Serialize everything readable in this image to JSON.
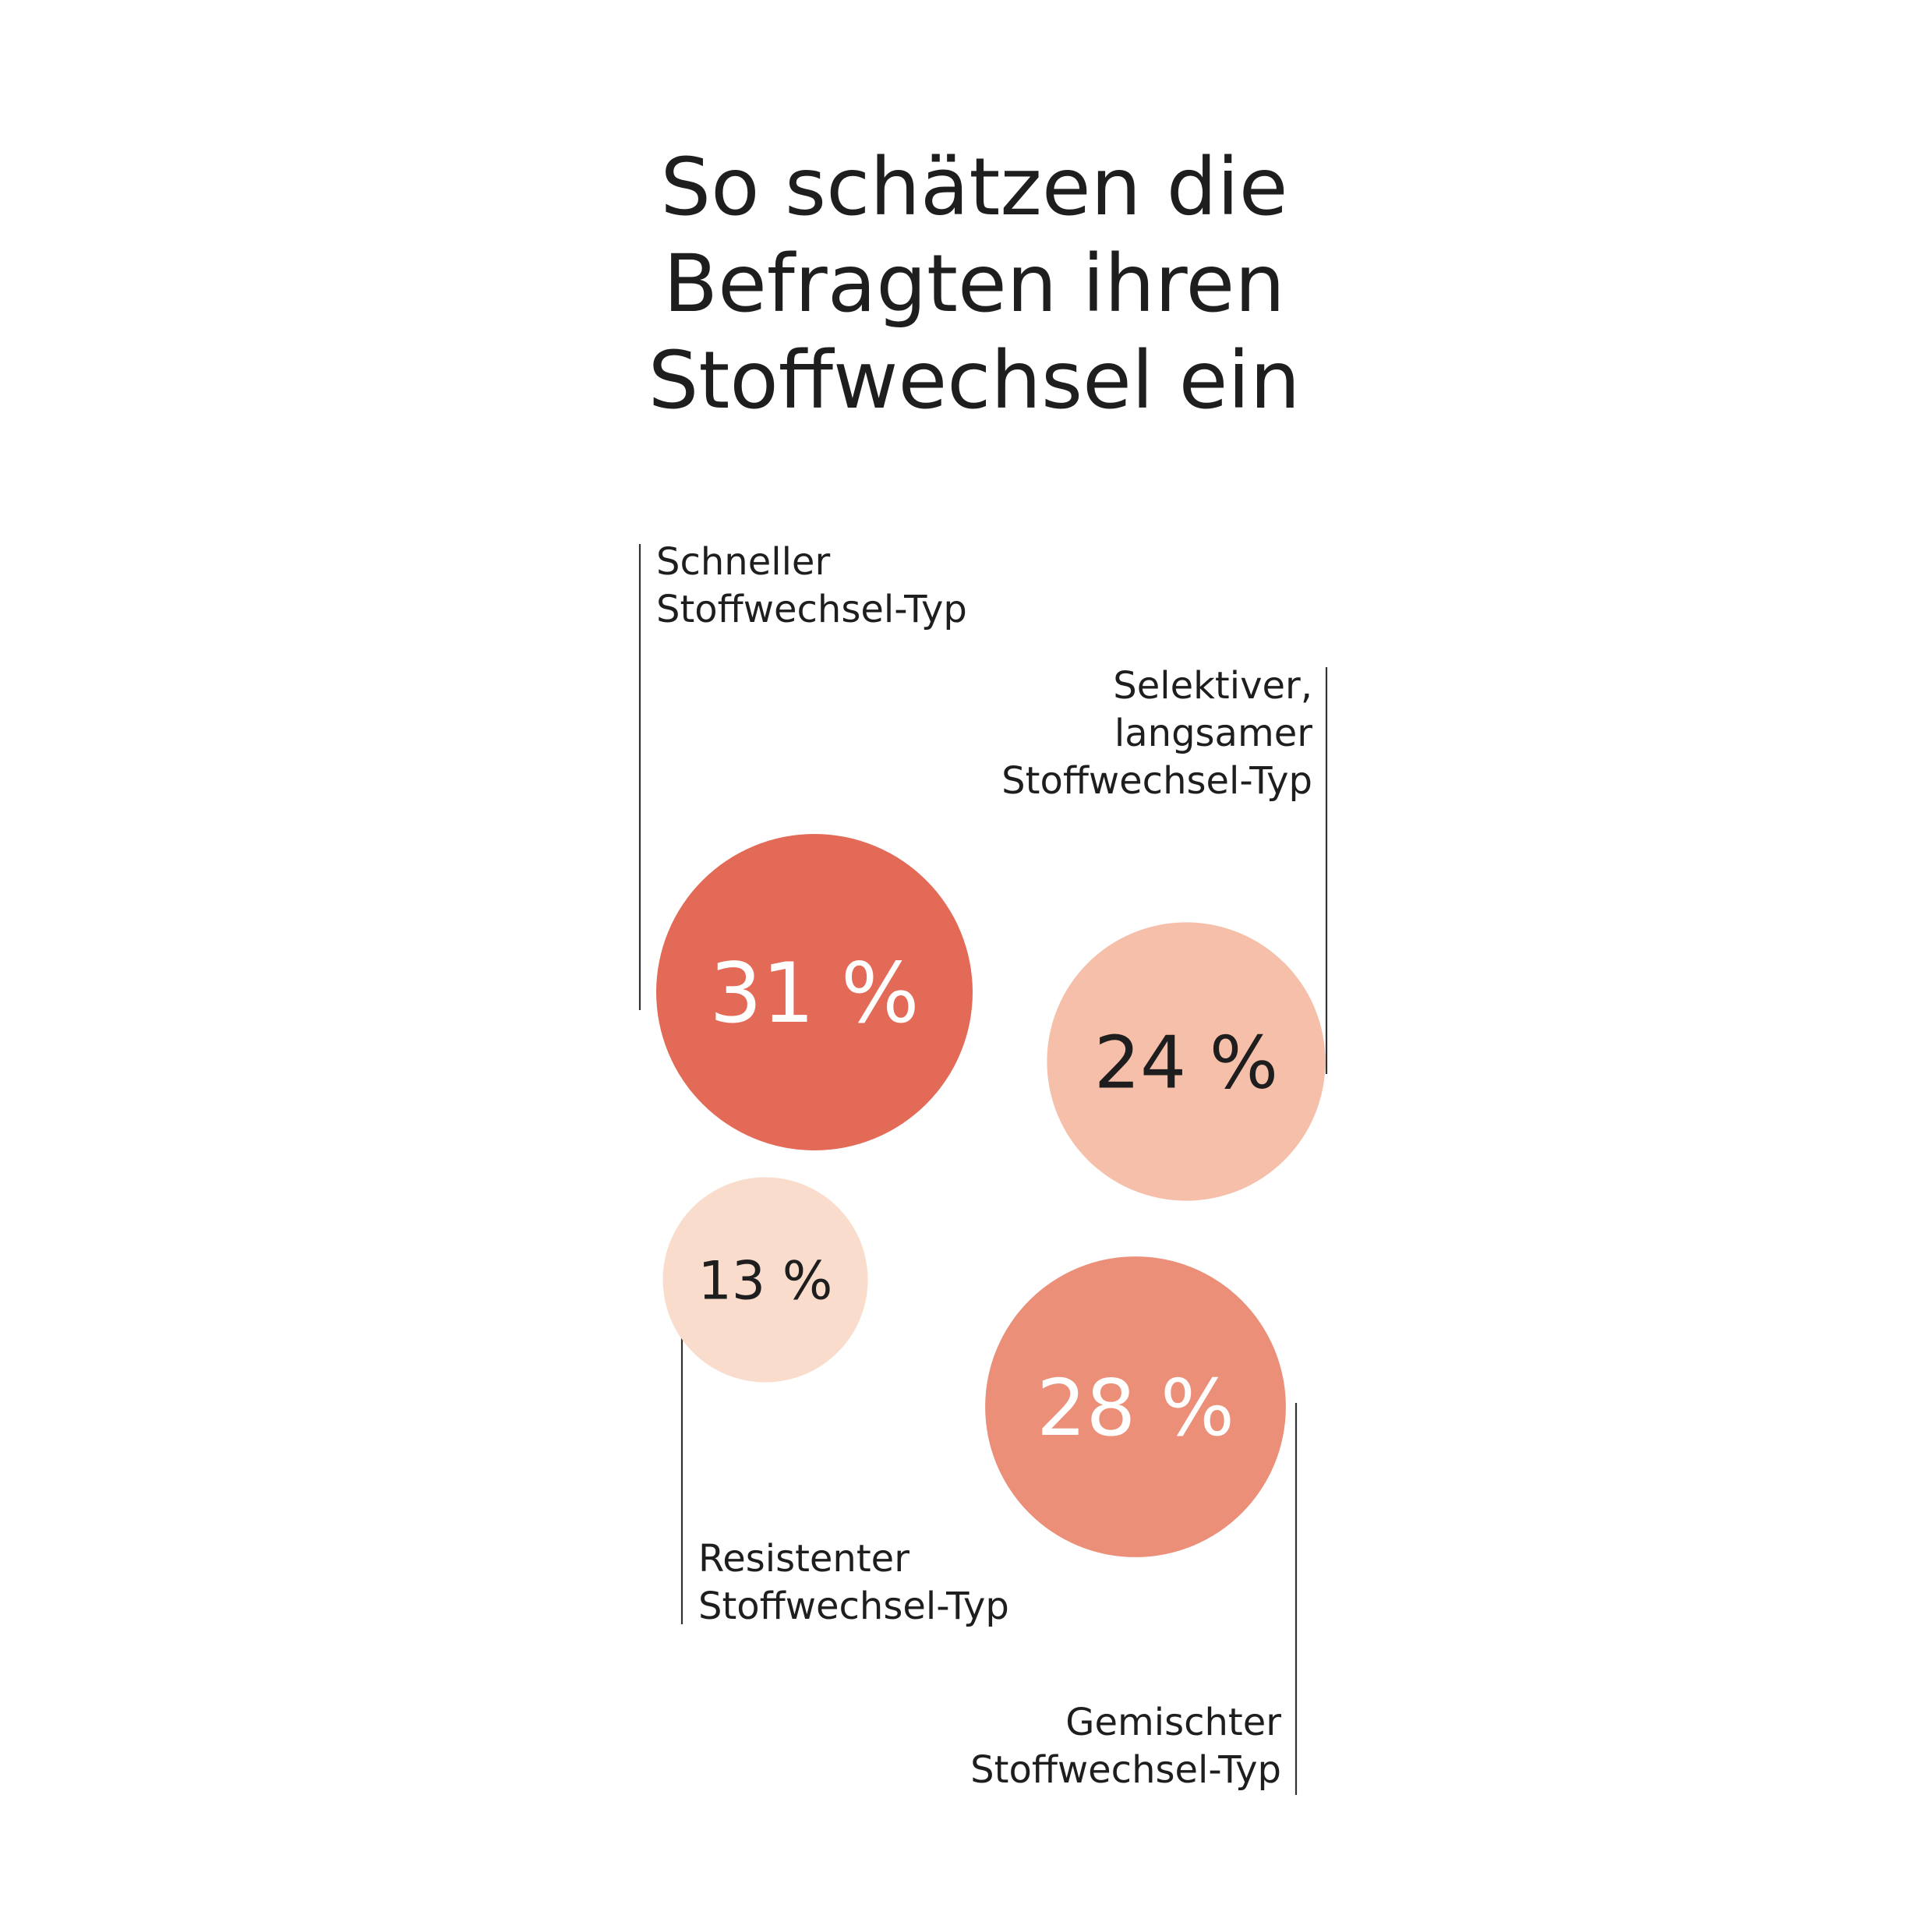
{
  "chart_data": {
    "type": "bubble",
    "title": "So schätzen die Befragten ihren Stoffwechsel ein",
    "title_lines": [
      "So schätzen die",
      "Befragten ihren",
      "Stoffwechsel ein"
    ],
    "unit": "%",
    "categories": [
      "Schneller Stoffwechsel-Typ",
      "Selektiver, langsamer Stoffwechsel-Typ",
      "Resistenter Stoffwechsel-Typ",
      "Gemischter Stoffwechsel-Typ"
    ],
    "values": [
      31,
      24,
      13,
      28
    ],
    "value_labels": [
      "31 %",
      "24 %",
      "13 %",
      "28 %"
    ],
    "label_lines": [
      [
        "Schneller",
        "Stoffwechsel-Typ"
      ],
      [
        "Selektiver,",
        "langsamer",
        "Stoffwechsel-Typ"
      ],
      [
        "Resistenter",
        "Stoffwechsel-Typ"
      ],
      [
        "Gemischter",
        "Stoffwechsel-Typ"
      ]
    ],
    "colors": [
      "#e26a57",
      "#f5bfa9",
      "#f9dccb",
      "#eb8f78"
    ],
    "value_label_colors": [
      "#ffffff",
      "#1e1e1e",
      "#1e1e1e",
      "#ffffff"
    ],
    "legend": "none",
    "grid": false
  }
}
